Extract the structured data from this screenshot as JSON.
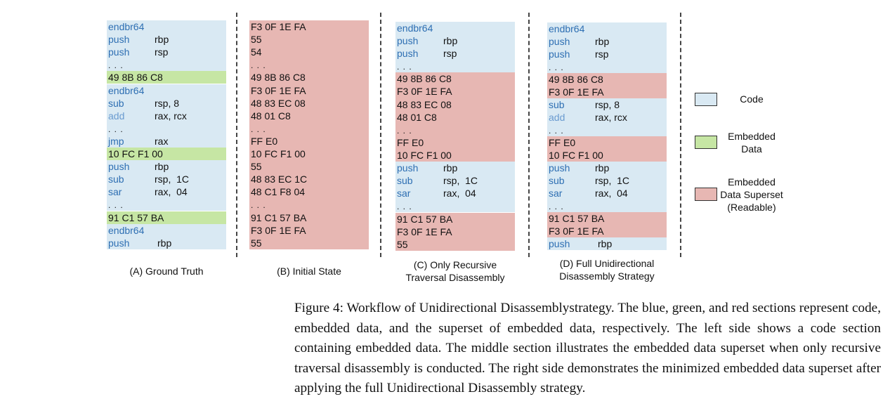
{
  "panels": [
    {
      "id": "A",
      "caption": [
        "(A) Ground Truth"
      ],
      "blocks": [
        {
          "kind": "code",
          "lines": [
            {
              "op": "endbr64"
            },
            {
              "op": "push",
              "arg": "rbp"
            },
            {
              "op": "push",
              "arg": "rsp"
            },
            {
              "dots": true
            }
          ]
        },
        {
          "kind": "emb",
          "lines": [
            {
              "text": "49 8B 86 C8"
            }
          ]
        },
        {
          "kind": "code",
          "lines": [
            {
              "op": "endbr64"
            },
            {
              "op": "sub",
              "arg": "rsp, 8"
            },
            {
              "op": "add",
              "arg": "rax, rcx",
              "light": true
            },
            {
              "dots": true
            },
            {
              "op": "jmp",
              "arg": "rax"
            }
          ]
        },
        {
          "kind": "emb",
          "lines": [
            {
              "text": "10 FC F1 00"
            }
          ]
        },
        {
          "kind": "code",
          "lines": [
            {
              "op": "push",
              "arg": "rbp"
            },
            {
              "op": "sub",
              "arg": "rsp,  1C"
            },
            {
              "op": "sar",
              "arg": "rax,  04"
            },
            {
              "dots": true
            }
          ]
        },
        {
          "kind": "emb",
          "lines": [
            {
              "text": "91 C1 57 BA"
            }
          ]
        },
        {
          "kind": "code",
          "lines": [
            {
              "op": "endbr64"
            },
            {
              "op": "push",
              "arg": "rbp",
              "wide": true
            }
          ]
        }
      ]
    },
    {
      "id": "B",
      "caption": [
        "(B) Initial State"
      ],
      "blocks": [
        {
          "kind": "sup",
          "lines": [
            {
              "text": "F3 0F 1E FA"
            },
            {
              "text": "55"
            },
            {
              "text": "54"
            },
            {
              "dots": true
            },
            {
              "text": "49 8B 86 C8"
            },
            {
              "text": "F3 0F 1E FA"
            },
            {
              "text": "48 83 EC 08"
            },
            {
              "text": "48 01 C8"
            },
            {
              "dots": true
            },
            {
              "text": "FF E0"
            },
            {
              "text": "10 FC F1 00"
            },
            {
              "text": "55"
            },
            {
              "text": "48 83 EC 1C"
            },
            {
              "text": "48 C1 F8 04"
            },
            {
              "dots": true
            },
            {
              "text": "91 C1 57 BA"
            },
            {
              "text": "F3 0F 1E FA"
            },
            {
              "text": "55"
            }
          ]
        }
      ]
    },
    {
      "id": "C",
      "caption": [
        "(C) Only Recursive",
        "Traversal Disassembly"
      ],
      "blocks": [
        {
          "kind": "code",
          "lines": [
            {
              "op": "endbr64"
            },
            {
              "op": "push",
              "arg": "rbp"
            },
            {
              "op": "push",
              "arg": "rsp"
            },
            {
              "dots": true
            }
          ]
        },
        {
          "kind": "sup",
          "lines": [
            {
              "text": "49 8B 86 C8"
            },
            {
              "text": "F3 0F 1E FA"
            },
            {
              "text": "48 83 EC 08"
            },
            {
              "text": "48 01 C8"
            },
            {
              "dots": true
            },
            {
              "text": "FF E0"
            },
            {
              "text": "10 FC F1 00"
            }
          ]
        },
        {
          "kind": "code",
          "lines": [
            {
              "op": "push",
              "arg": "rbp"
            },
            {
              "op": "sub",
              "arg": "rsp,  1C"
            },
            {
              "op": "sar",
              "arg": "rax,  04"
            },
            {
              "dots": true
            }
          ]
        },
        {
          "kind": "sup",
          "lines": [
            {
              "text": "91 C1 57 BA"
            },
            {
              "text": "F3 0F 1E FA"
            },
            {
              "text": "55"
            }
          ]
        }
      ]
    },
    {
      "id": "D",
      "caption": [
        "(D) Full Unidirectional",
        "Disassembly Strategy"
      ],
      "blocks": [
        {
          "kind": "code",
          "lines": [
            {
              "op": "endbr64"
            },
            {
              "op": "push",
              "arg": "rbp"
            },
            {
              "op": "push",
              "arg": "rsp"
            },
            {
              "dots": true
            }
          ]
        },
        {
          "kind": "sup",
          "lines": [
            {
              "text": "49 8B 86 C8"
            },
            {
              "text": "F3 0F 1E FA"
            }
          ]
        },
        {
          "kind": "code",
          "lines": [
            {
              "op": "sub",
              "arg": "rsp, 8"
            },
            {
              "op": "add",
              "arg": "rax, rcx",
              "light": true
            },
            {
              "dots": true
            }
          ]
        },
        {
          "kind": "sup",
          "lines": [
            {
              "text": "FF E0"
            },
            {
              "text": "10 FC F1 00"
            }
          ]
        },
        {
          "kind": "code",
          "lines": [
            {
              "op": "push",
              "arg": "rbp"
            },
            {
              "op": "sub",
              "arg": "rsp,  1C"
            },
            {
              "op": "sar",
              "arg": "rax,  04"
            },
            {
              "dots": true
            }
          ]
        },
        {
          "kind": "sup",
          "lines": [
            {
              "text": "91 C1 57 BA"
            },
            {
              "text": "F3 0F 1E FA"
            }
          ]
        },
        {
          "kind": "code",
          "lines": [
            {
              "op": "push",
              "arg": "rbp",
              "wide": true
            }
          ]
        }
      ]
    }
  ],
  "legend": [
    {
      "kind": "code",
      "lines": [
        "Code"
      ]
    },
    {
      "kind": "emb",
      "lines": [
        "Embedded",
        "Data"
      ]
    },
    {
      "kind": "sup",
      "lines": [
        "Embedded",
        "Data Superset",
        "(Readable)"
      ]
    }
  ],
  "colors": {
    "code": "#d9e9f3",
    "embedded": "#c6e6a4",
    "superset": "#e7b7b3",
    "opcode": "#2e6fb3"
  },
  "figure_caption": "Figure 4: Workflow of Unidirectional Disassemblystrategy. The blue, green, and red sections represent code, embedded data, and the superset of embedded data, respectively. The left side shows a code section containing embedded data. The middle section illustrates the embedded data superset when only recursive traversal disassembly is conducted. The right side demonstrates the minimized embedded data superset after applying the full Unidirectional Disassembly strategy."
}
